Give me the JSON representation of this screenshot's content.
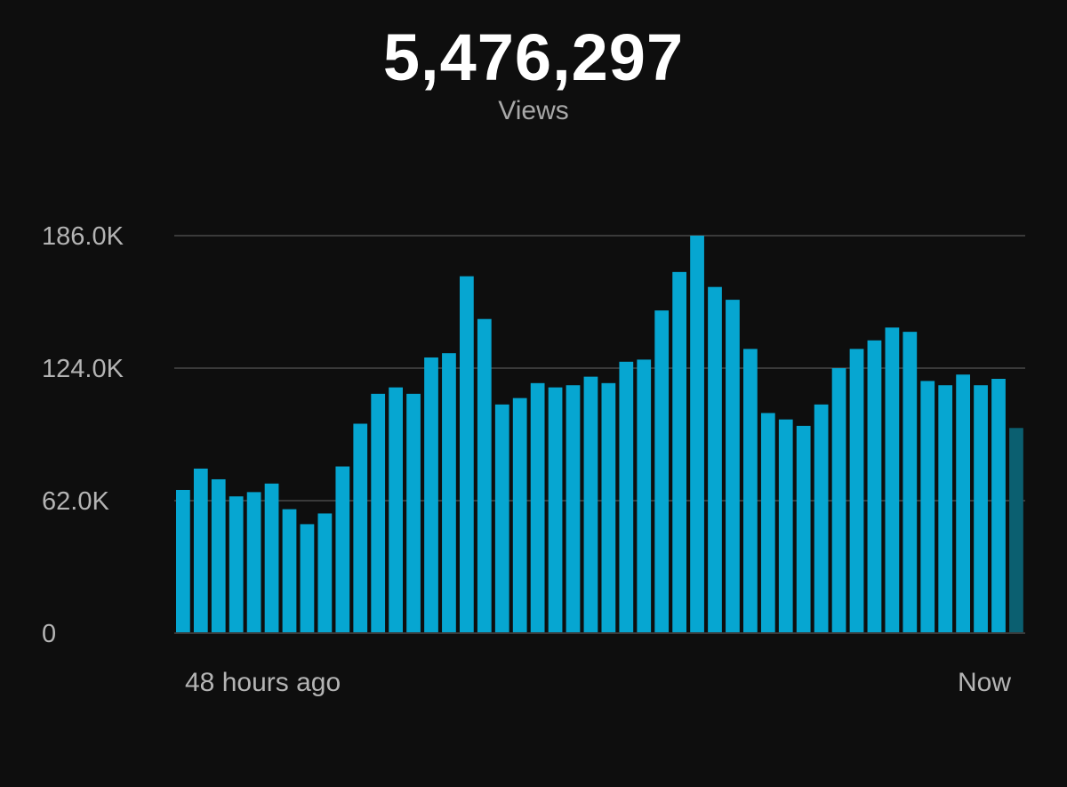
{
  "header": {
    "total": "5,476,297",
    "metric": "Views"
  },
  "colors": {
    "bar": "#06a6d1",
    "bar_current": "#0b5f70",
    "grid": "#3a3a3a",
    "background": "#0e0e0e"
  },
  "chart_data": {
    "type": "bar",
    "title": "",
    "xlabel": "",
    "ylabel": "",
    "ylim": [
      0,
      186000
    ],
    "y_ticks": [
      0,
      62000,
      124000,
      186000
    ],
    "y_tick_labels": [
      "0",
      "62.0K",
      "124.0K",
      "186.0K"
    ],
    "x_labels": {
      "start": "48 hours ago",
      "end": "Now"
    },
    "grid": true,
    "current_partial_bar": true,
    "values": [
      67000,
      77000,
      72000,
      64000,
      66000,
      70000,
      58000,
      51000,
      56000,
      78000,
      98000,
      112000,
      115000,
      112000,
      129000,
      131000,
      167000,
      147000,
      107000,
      110000,
      117000,
      115000,
      116000,
      120000,
      117000,
      127000,
      128000,
      151000,
      169000,
      186000,
      162000,
      156000,
      133000,
      103000,
      100000,
      97000,
      107000,
      124000,
      133000,
      137000,
      143000,
      141000,
      118000,
      116000,
      121000,
      116000,
      119000,
      96000
    ]
  }
}
